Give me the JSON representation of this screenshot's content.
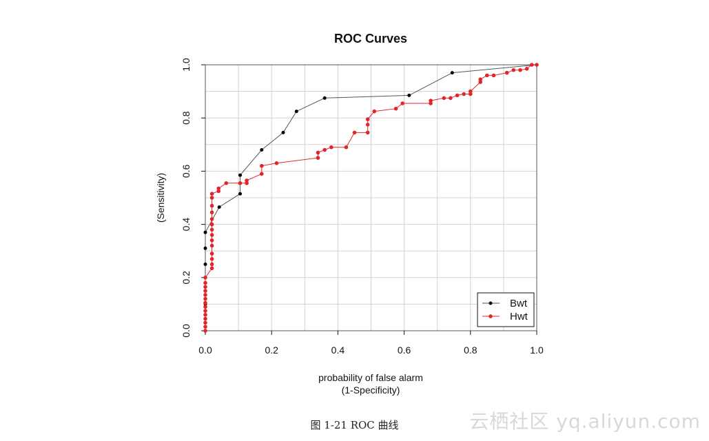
{
  "chart_data": {
    "type": "line",
    "title": "ROC Curves",
    "xlabel": "probability of false alarm",
    "xlabel2": "(1-Specificity)",
    "ylabel": "(Sensitivity)",
    "xlim": [
      0,
      1
    ],
    "ylim": [
      0,
      1
    ],
    "xticks": [
      "0.0",
      "0.2",
      "0.4",
      "0.6",
      "0.8",
      "1.0"
    ],
    "yticks": [
      "0.0",
      "0.2",
      "0.4",
      "0.6",
      "0.8",
      "1.0"
    ],
    "grid": true,
    "legend_position": "bottom-right",
    "series": [
      {
        "name": "Bwt",
        "color": "#000000",
        "line_color": "#555555",
        "points": [
          [
            0,
            0
          ],
          [
            0,
            0.1
          ],
          [
            0,
            0.2
          ],
          [
            0,
            0.25
          ],
          [
            0,
            0.31
          ],
          [
            0,
            0.37
          ],
          [
            0.042,
            0.465
          ],
          [
            0.105,
            0.515
          ],
          [
            0.105,
            0.585
          ],
          [
            0.17,
            0.68
          ],
          [
            0.235,
            0.745
          ],
          [
            0.275,
            0.825
          ],
          [
            0.36,
            0.875
          ],
          [
            0.615,
            0.885
          ],
          [
            0.745,
            0.97
          ],
          [
            1,
            1
          ]
        ]
      },
      {
        "name": "Hwt",
        "color": "#e0262b",
        "line_color": "#e0262b",
        "points": [
          [
            0,
            0
          ],
          [
            0,
            0.015
          ],
          [
            0,
            0.03
          ],
          [
            0,
            0.045
          ],
          [
            0,
            0.06
          ],
          [
            0,
            0.075
          ],
          [
            0,
            0.09
          ],
          [
            0,
            0.105
          ],
          [
            0,
            0.12
          ],
          [
            0,
            0.135
          ],
          [
            0,
            0.15
          ],
          [
            0,
            0.165
          ],
          [
            0,
            0.18
          ],
          [
            0,
            0.2
          ],
          [
            0.02,
            0.235
          ],
          [
            0.02,
            0.25
          ],
          [
            0.02,
            0.27
          ],
          [
            0.02,
            0.29
          ],
          [
            0.02,
            0.32
          ],
          [
            0.02,
            0.34
          ],
          [
            0.02,
            0.36
          ],
          [
            0.02,
            0.38
          ],
          [
            0.02,
            0.4
          ],
          [
            0.02,
            0.42
          ],
          [
            0.02,
            0.445
          ],
          [
            0.02,
            0.47
          ],
          [
            0.02,
            0.5
          ],
          [
            0.02,
            0.515
          ],
          [
            0.04,
            0.525
          ],
          [
            0.04,
            0.535
          ],
          [
            0.063,
            0.555
          ],
          [
            0.105,
            0.555
          ],
          [
            0.125,
            0.555
          ],
          [
            0.125,
            0.565
          ],
          [
            0.17,
            0.59
          ],
          [
            0.17,
            0.62
          ],
          [
            0.215,
            0.63
          ],
          [
            0.34,
            0.65
          ],
          [
            0.34,
            0.67
          ],
          [
            0.36,
            0.68
          ],
          [
            0.38,
            0.69
          ],
          [
            0.425,
            0.69
          ],
          [
            0.45,
            0.745
          ],
          [
            0.49,
            0.745
          ],
          [
            0.49,
            0.775
          ],
          [
            0.49,
            0.795
          ],
          [
            0.51,
            0.825
          ],
          [
            0.575,
            0.835
          ],
          [
            0.595,
            0.855
          ],
          [
            0.68,
            0.855
          ],
          [
            0.68,
            0.865
          ],
          [
            0.72,
            0.875
          ],
          [
            0.74,
            0.875
          ],
          [
            0.76,
            0.885
          ],
          [
            0.78,
            0.89
          ],
          [
            0.8,
            0.89
          ],
          [
            0.8,
            0.9
          ],
          [
            0.83,
            0.935
          ],
          [
            0.83,
            0.945
          ],
          [
            0.85,
            0.96
          ],
          [
            0.87,
            0.96
          ],
          [
            0.91,
            0.97
          ],
          [
            0.93,
            0.98
          ],
          [
            0.95,
            0.98
          ],
          [
            0.97,
            0.985
          ],
          [
            0.985,
            1
          ],
          [
            1,
            1
          ]
        ]
      }
    ]
  },
  "caption": "图 1-21    ROC 曲线",
  "watermark": "云栖社区 yq.aliyun.com"
}
